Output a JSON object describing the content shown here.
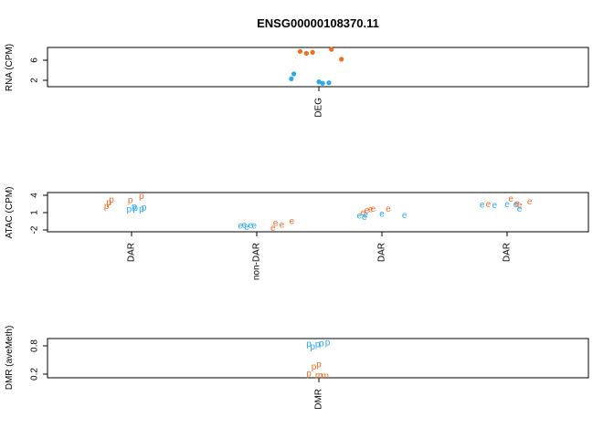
{
  "chart_data": [
    {
      "type": "scatter",
      "title": "ENSG00000108370.11",
      "ylabel": "RNA (CPM)",
      "ylim": [
        0.2,
        8.2
      ],
      "yticks": [
        "2",
        "6"
      ],
      "categories": [
        "DEG"
      ],
      "marker": "dot",
      "series": [
        {
          "color": "#F26B21",
          "points": [
            {
              "cat": 0,
              "x": -0.15,
              "y": 7.4
            },
            {
              "cat": 0,
              "x": -0.1,
              "y": 7.0
            },
            {
              "cat": 0,
              "x": -0.05,
              "y": 7.2
            },
            {
              "cat": 0,
              "x": 0.1,
              "y": 7.8
            },
            {
              "cat": 0,
              "x": 0.18,
              "y": 5.8
            }
          ]
        },
        {
          "color": "#29A9EE",
          "points": [
            {
              "cat": 0,
              "x": -0.2,
              "y": 2.8
            },
            {
              "cat": 0,
              "x": -0.22,
              "y": 1.8
            },
            {
              "cat": 0,
              "x": 0.0,
              "y": 1.2
            },
            {
              "cat": 0,
              "x": 0.03,
              "y": 0.9
            },
            {
              "cat": 0,
              "x": 0.08,
              "y": 1.0
            }
          ]
        }
      ]
    },
    {
      "type": "scatter",
      "ylabel": "ATAC (CPM)",
      "ylim": [
        -2.6,
        4.5
      ],
      "yticks": [
        "-2",
        "1",
        "4"
      ],
      "categories": [
        "DAR",
        "non-DAR",
        "DAR",
        "DAR"
      ],
      "marker": "letter",
      "series": [
        {
          "color": "#F26B21",
          "points": [
            {
              "cat": 0,
              "x": -0.2,
              "y": 2.0,
              "t": "p"
            },
            {
              "cat": 0,
              "x": -0.18,
              "y": 2.6,
              "t": "p"
            },
            {
              "cat": 0,
              "x": -0.16,
              "y": 3.1,
              "t": "p"
            },
            {
              "cat": 0,
              "x": -0.01,
              "y": 3.0,
              "t": "p"
            },
            {
              "cat": 0,
              "x": 0.08,
              "y": 3.8,
              "t": "p"
            },
            {
              "cat": 1,
              "x": 0.15,
              "y": -1.1,
              "t": "e"
            },
            {
              "cat": 1,
              "x": 0.2,
              "y": -1.4,
              "t": "e"
            },
            {
              "cat": 1,
              "x": 0.28,
              "y": -0.8,
              "t": "e"
            },
            {
              "cat": 1,
              "x": 0.13,
              "y": -2.0,
              "t": "e"
            },
            {
              "cat": 2,
              "x": -0.15,
              "y": 0.8,
              "t": "e"
            },
            {
              "cat": 2,
              "x": -0.12,
              "y": 1.2,
              "t": "e"
            },
            {
              "cat": 2,
              "x": -0.09,
              "y": 1.4,
              "t": "e"
            },
            {
              "cat": 2,
              "x": -0.07,
              "y": 1.5,
              "t": "e"
            },
            {
              "cat": 2,
              "x": 0.05,
              "y": 1.5,
              "t": "e"
            },
            {
              "cat": 3,
              "x": -0.15,
              "y": 2.3,
              "t": "e"
            },
            {
              "cat": 3,
              "x": 0.03,
              "y": 3.3,
              "t": "e"
            },
            {
              "cat": 3,
              "x": 0.08,
              "y": 2.5,
              "t": "e"
            },
            {
              "cat": 3,
              "x": 0.1,
              "y": 2.1,
              "t": "e"
            },
            {
              "cat": 3,
              "x": 0.18,
              "y": 2.8,
              "t": "e"
            }
          ]
        },
        {
          "color": "#29A9EE",
          "points": [
            {
              "cat": 0,
              "x": -0.02,
              "y": 1.4,
              "t": "p"
            },
            {
              "cat": 0,
              "x": 0.02,
              "y": 1.9,
              "t": "p"
            },
            {
              "cat": 0,
              "x": 0.03,
              "y": 1.6,
              "t": "p"
            },
            {
              "cat": 0,
              "x": 0.08,
              "y": 1.5,
              "t": "p"
            },
            {
              "cat": 0,
              "x": 0.1,
              "y": 1.7,
              "t": "p"
            },
            {
              "cat": 1,
              "x": -0.13,
              "y": -1.6,
              "t": "e"
            },
            {
              "cat": 1,
              "x": -0.1,
              "y": -1.4,
              "t": "e"
            },
            {
              "cat": 1,
              "x": -0.08,
              "y": -1.8,
              "t": "e"
            },
            {
              "cat": 1,
              "x": -0.05,
              "y": -1.5,
              "t": "e"
            },
            {
              "cat": 1,
              "x": -0.02,
              "y": -1.6,
              "t": "e"
            },
            {
              "cat": 2,
              "x": -0.18,
              "y": 0.2,
              "t": "e"
            },
            {
              "cat": 2,
              "x": -0.14,
              "y": 0.0,
              "t": "e"
            },
            {
              "cat": 2,
              "x": -0.13,
              "y": 0.4,
              "t": "e"
            },
            {
              "cat": 2,
              "x": 0.0,
              "y": 0.6,
              "t": "e"
            },
            {
              "cat": 2,
              "x": 0.18,
              "y": 0.3,
              "t": "e"
            },
            {
              "cat": 3,
              "x": -0.2,
              "y": 2.2,
              "t": "e"
            },
            {
              "cat": 3,
              "x": -0.1,
              "y": 2.1,
              "t": "e"
            },
            {
              "cat": 3,
              "x": 0.0,
              "y": 2.3,
              "t": "e"
            },
            {
              "cat": 3,
              "x": 0.07,
              "y": 2.3,
              "t": "e"
            },
            {
              "cat": 3,
              "x": 0.1,
              "y": 1.5,
              "t": "e"
            }
          ]
        }
      ]
    },
    {
      "type": "scatter",
      "ylabel": "DMR (aveMeth)",
      "ylim": [
        0.1,
        0.9
      ],
      "yticks": [
        "0.2",
        "0.8"
      ],
      "categories": [
        "DMR"
      ],
      "marker": "letter",
      "series": [
        {
          "color": "#F26B21",
          "points": [
            {
              "cat": 0,
              "x": -0.08,
              "y": 0.18,
              "t": "p"
            },
            {
              "cat": 0,
              "x": -0.04,
              "y": 0.32,
              "t": "p"
            },
            {
              "cat": 0,
              "x": 0.0,
              "y": 0.36,
              "t": "p"
            },
            {
              "cat": 0,
              "x": 0.0,
              "y": 0.14,
              "t": "m"
            },
            {
              "cat": 0,
              "x": 0.05,
              "y": 0.13,
              "t": "m"
            }
          ]
        },
        {
          "color": "#29A9EE",
          "points": [
            {
              "cat": 0,
              "x": -0.08,
              "y": 0.78,
              "t": "p"
            },
            {
              "cat": 0,
              "x": -0.05,
              "y": 0.73,
              "t": "p"
            },
            {
              "cat": 0,
              "x": -0.01,
              "y": 0.77,
              "t": "p"
            },
            {
              "cat": 0,
              "x": 0.02,
              "y": 0.79,
              "t": "p"
            },
            {
              "cat": 0,
              "x": 0.07,
              "y": 0.81,
              "t": "p"
            }
          ]
        }
      ]
    }
  ]
}
